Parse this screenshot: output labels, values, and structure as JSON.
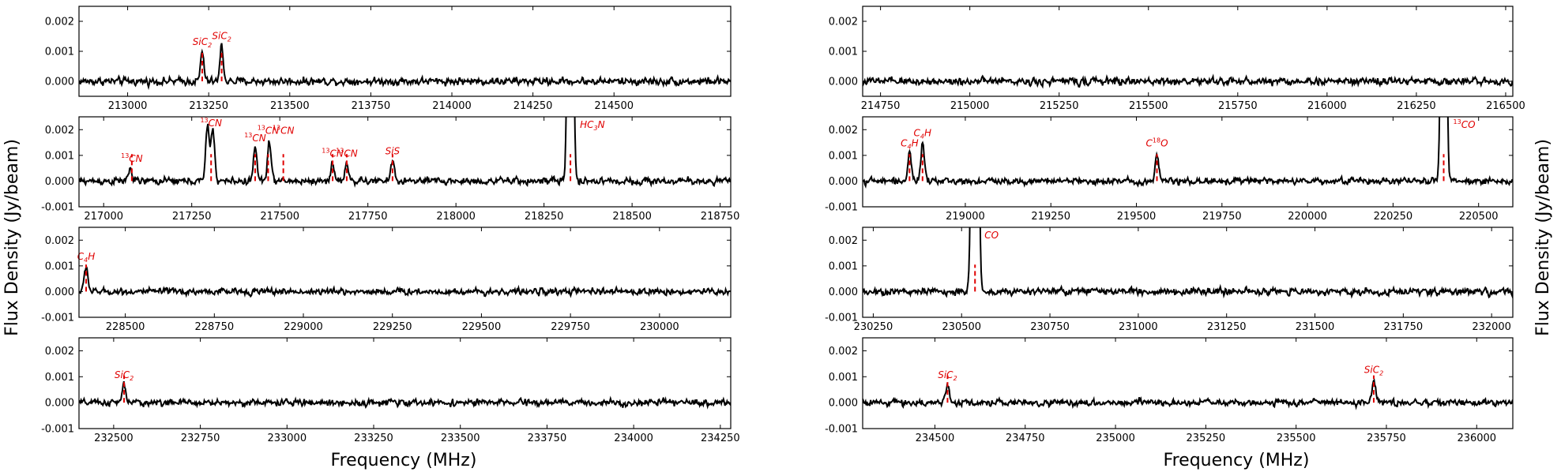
{
  "figure": {
    "xlabel_left": "Frequency (MHz)",
    "xlabel_right": "Frequency (MHz)",
    "ylabel_left": "Flux Density (Jy/beam)",
    "ylabel_right": "Flux Density (Jy/beam)",
    "line_color": "#000000",
    "marker_color": "#e00000"
  },
  "chart_data": [
    {
      "type": "line",
      "panel": "left-1",
      "xlim": [
        212850,
        214860
      ],
      "ylim": [
        -0.0005,
        0.0025
      ],
      "xticks": [
        213000,
        213250,
        213500,
        213750,
        214000,
        214250,
        214500
      ],
      "yticks": [
        0.0,
        0.001,
        0.002
      ],
      "noise": 0.00011,
      "peaks": [
        {
          "x": 213230,
          "y": 0.001
        },
        {
          "x": 213290,
          "y": 0.0012
        }
      ],
      "markers": [
        {
          "x": 213230,
          "label": "SiC2",
          "html": "SiC<tspan class='sub' dy='3'>2</tspan>"
        },
        {
          "x": 213290,
          "label": "SiC2",
          "html": "SiC<tspan class='sub' dy='3'>2</tspan>"
        }
      ]
    },
    {
      "type": "line",
      "panel": "left-2",
      "xlim": [
        216930,
        218780
      ],
      "ylim": [
        -0.001,
        0.0025
      ],
      "xticks": [
        217000,
        217250,
        217500,
        217750,
        218000,
        218250,
        218500,
        218750
      ],
      "yticks": [
        -0.001,
        0.0,
        0.001,
        0.002
      ],
      "noise": 0.00012,
      "peaks": [
        {
          "x": 217075,
          "y": 0.0005
        },
        {
          "x": 217295,
          "y": 0.0022
        },
        {
          "x": 217310,
          "y": 0.002
        },
        {
          "x": 217430,
          "y": 0.0013
        },
        {
          "x": 217470,
          "y": 0.0016
        },
        {
          "x": 217650,
          "y": 0.0007
        },
        {
          "x": 217690,
          "y": 0.0007
        },
        {
          "x": 217820,
          "y": 0.0008
        },
        {
          "x": 218325,
          "y": 0.02
        }
      ],
      "markers": [
        {
          "x": 217080,
          "label": "13CN",
          "html": "<tspan class='sup' dy='-5'>13</tspan><tspan dy='5'>CN</tspan>"
        },
        {
          "x": 217305,
          "label": "13CN",
          "html": "<tspan class='sup' dy='-5'>13</tspan><tspan dy='5'>CN</tspan>"
        },
        {
          "x": 217430,
          "label": "13CN",
          "html": "<tspan class='sup' dy='-5'>13</tspan><tspan dy='5'>CN</tspan>"
        },
        {
          "x": 217467,
          "label": "13CN",
          "html": "<tspan class='sup' dy='-5'>13</tspan><tspan dy='5'>CN</tspan>"
        },
        {
          "x": 217510,
          "label": "13CN",
          "html": "<tspan class='sup' dy='-5'>13</tspan><tspan dy='5'>CN</tspan>"
        },
        {
          "x": 217650,
          "label": "13CN",
          "html": "<tspan class='sup' dy='-5'>13</tspan><tspan dy='5'>CN</tspan>"
        },
        {
          "x": 217690,
          "label": "13CN",
          "html": "<tspan class='sup' dy='-5'>13</tspan><tspan dy='5'>CN</tspan>"
        },
        {
          "x": 217820,
          "label": "SiS",
          "html": "SiS"
        },
        {
          "x": 218325,
          "label": "HC3N",
          "html": "HC<tspan class='sub' dy='3'>3</tspan><tspan dy='-3'>N</tspan>"
        }
      ]
    },
    {
      "type": "line",
      "panel": "left-3",
      "xlim": [
        228370,
        230200
      ],
      "ylim": [
        -0.001,
        0.0025
      ],
      "xticks": [
        228500,
        228750,
        229000,
        229250,
        229500,
        229750,
        230000
      ],
      "yticks": [
        -0.001,
        0.0,
        0.001,
        0.002
      ],
      "noise": 0.00011,
      "peaks": [
        {
          "x": 228390,
          "y": 0.001
        }
      ],
      "markers": [
        {
          "x": 228390,
          "label": "C4H",
          "html": "C<tspan class='sub' dy='3'>4</tspan><tspan dy='-3'>H</tspan>"
        }
      ]
    },
    {
      "type": "line",
      "panel": "left-4",
      "xlim": [
        232400,
        234280
      ],
      "ylim": [
        -0.001,
        0.0025
      ],
      "xticks": [
        232500,
        232750,
        233000,
        233250,
        233500,
        233750,
        234000,
        234250
      ],
      "yticks": [
        -0.001,
        0.0,
        0.001,
        0.002
      ],
      "noise": 0.00011,
      "peaks": [
        {
          "x": 232530,
          "y": 0.0007
        }
      ],
      "markers": [
        {
          "x": 232530,
          "label": "SiC2",
          "html": "SiC<tspan class='sub' dy='3'>2</tspan>"
        }
      ]
    },
    {
      "type": "line",
      "panel": "right-1",
      "xlim": [
        214700,
        216520
      ],
      "ylim": [
        -0.0005,
        0.0025
      ],
      "xticks": [
        214750,
        215000,
        215250,
        215500,
        215750,
        216000,
        216250,
        216500
      ],
      "yticks": [
        0.0,
        0.001,
        0.002
      ],
      "noise": 0.00011,
      "peaks": [],
      "markers": []
    },
    {
      "type": "line",
      "panel": "right-2",
      "xlim": [
        218700,
        220600
      ],
      "ylim": [
        -0.001,
        0.0025
      ],
      "xticks": [
        219000,
        219250,
        219500,
        219750,
        220000,
        220250,
        220500
      ],
      "yticks": [
        -0.001,
        0.0,
        0.001,
        0.002
      ],
      "noise": 0.00011,
      "peaks": [
        {
          "x": 218837,
          "y": 0.0011
        },
        {
          "x": 218875,
          "y": 0.0015
        },
        {
          "x": 219560,
          "y": 0.0011
        },
        {
          "x": 220398,
          "y": 0.02
        }
      ],
      "markers": [
        {
          "x": 218837,
          "label": "C4H",
          "html": "C<tspan class='sub' dy='3'>4</tspan><tspan dy='-3'>H</tspan>"
        },
        {
          "x": 218875,
          "label": "C4H",
          "html": "C<tspan class='sub' dy='3'>4</tspan><tspan dy='-3'>H</tspan>"
        },
        {
          "x": 219560,
          "label": "C18O",
          "html": "C<tspan class='sup' dy='-5'>18</tspan><tspan dy='5'>O</tspan>"
        },
        {
          "x": 220398,
          "label": "13CO",
          "html": "<tspan class='sup' dy='-5'>13</tspan><tspan dy='5'>CO</tspan>"
        }
      ]
    },
    {
      "type": "line",
      "panel": "right-3",
      "xlim": [
        230220,
        232060
      ],
      "ylim": [
        -0.001,
        0.0025
      ],
      "xticks": [
        230250,
        230500,
        230750,
        231000,
        231250,
        231500,
        231750,
        232000
      ],
      "yticks": [
        -0.001,
        0.0,
        0.001,
        0.002
      ],
      "noise": 0.00012,
      "peaks": [
        {
          "x": 230538,
          "y": 0.05
        }
      ],
      "markers": [
        {
          "x": 230538,
          "label": "CO",
          "html": "CO"
        }
      ]
    },
    {
      "type": "line",
      "panel": "right-4",
      "xlim": [
        234300,
        236100
      ],
      "ylim": [
        -0.001,
        0.0025
      ],
      "xticks": [
        234500,
        234750,
        235000,
        235250,
        235500,
        235750,
        236000
      ],
      "yticks": [
        -0.001,
        0.0,
        0.001,
        0.002
      ],
      "noise": 0.00011,
      "peaks": [
        {
          "x": 234535,
          "y": 0.0007
        },
        {
          "x": 235715,
          "y": 0.0009
        }
      ],
      "markers": [
        {
          "x": 234535,
          "label": "SiC2",
          "html": "SiC<tspan class='sub' dy='3'>2</tspan>"
        },
        {
          "x": 235715,
          "label": "SiC2",
          "html": "SiC<tspan class='sub' dy='3'>2</tspan>"
        }
      ]
    }
  ]
}
